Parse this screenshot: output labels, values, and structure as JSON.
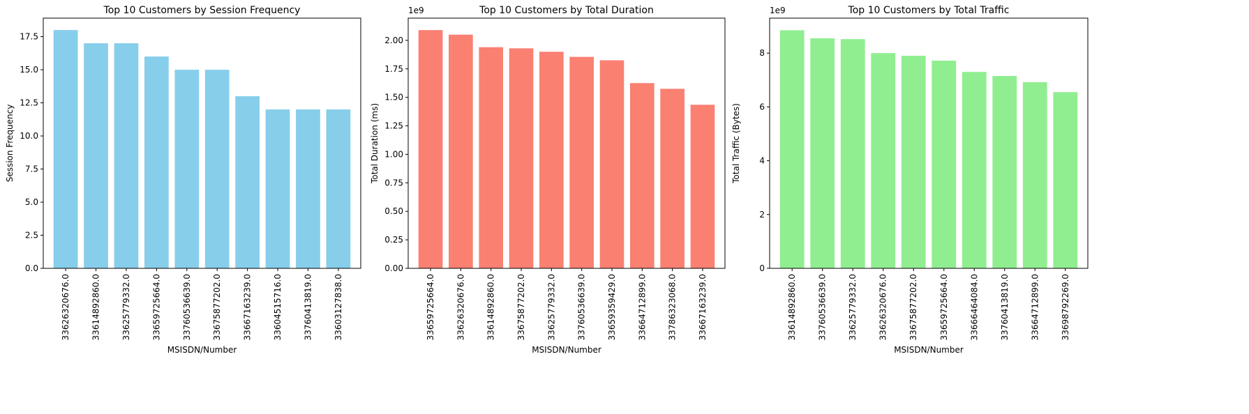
{
  "chart_data": [
    {
      "type": "bar",
      "title": "Top 10 Customers by Session Frequency",
      "xlabel": "MSISDN/Number",
      "ylabel": "Session Frequency",
      "color": "#87CEEB",
      "offset_text": "",
      "categories": [
        "33626320676.0",
        "33614892860.0",
        "33625779332.0",
        "33659725664.0",
        "33760536639.0",
        "33675877202.0",
        "33667163239.0",
        "33604515716.0",
        "33760413819.0",
        "33603127838.0"
      ],
      "values": [
        18,
        17,
        17,
        16,
        15,
        15,
        13,
        12,
        12,
        12
      ],
      "ylim": [
        0,
        18.9
      ],
      "yticks": [
        0,
        2.5,
        5,
        7.5,
        10,
        12.5,
        15,
        17.5
      ],
      "ytick_labels": [
        "0.0",
        "2.5",
        "5.0",
        "7.5",
        "10.0",
        "12.5",
        "15.0",
        "17.5"
      ]
    },
    {
      "type": "bar",
      "title": "Top 10 Customers by Total Duration",
      "xlabel": "MSISDN/Number",
      "ylabel": "Total Duration (ms)",
      "color": "#FA8072",
      "offset_text": "1e9",
      "categories": [
        "33659725664.0",
        "33626320676.0",
        "33614892860.0",
        "33675877202.0",
        "33625779332.0",
        "33760536639.0",
        "33659359429.0",
        "33664712899.0",
        "33786323068.0",
        "33667163239.0"
      ],
      "values": [
        2.09,
        2.05,
        1.94,
        1.93,
        1.9,
        1.855,
        1.825,
        1.625,
        1.575,
        1.435
      ],
      "ylim": [
        0,
        2.195
      ],
      "yticks": [
        0,
        0.25,
        0.5,
        0.75,
        1.0,
        1.25,
        1.5,
        1.75,
        2.0
      ],
      "ytick_labels": [
        "0.00",
        "0.25",
        "0.50",
        "0.75",
        "1.00",
        "1.25",
        "1.50",
        "1.75",
        "2.00"
      ]
    },
    {
      "type": "bar",
      "title": "Top 10 Customers by Total Traffic",
      "xlabel": "MSISDN/Number",
      "ylabel": "Total Traffic (Bytes)",
      "color": "#90EE90",
      "offset_text": "1e9",
      "categories": [
        "33614892860.0",
        "33760536639.0",
        "33625779332.0",
        "33626320676.0",
        "33675877202.0",
        "33659725664.0",
        "33666464084.0",
        "33760413819.0",
        "33664712899.0",
        "33698792269.0"
      ],
      "values": [
        8.85,
        8.55,
        8.52,
        8.0,
        7.9,
        7.72,
        7.3,
        7.15,
        6.92,
        6.55
      ],
      "ylim": [
        0,
        9.3
      ],
      "yticks": [
        0,
        2,
        4,
        6,
        8
      ],
      "ytick_labels": [
        "0",
        "2",
        "4",
        "6",
        "8"
      ]
    }
  ]
}
